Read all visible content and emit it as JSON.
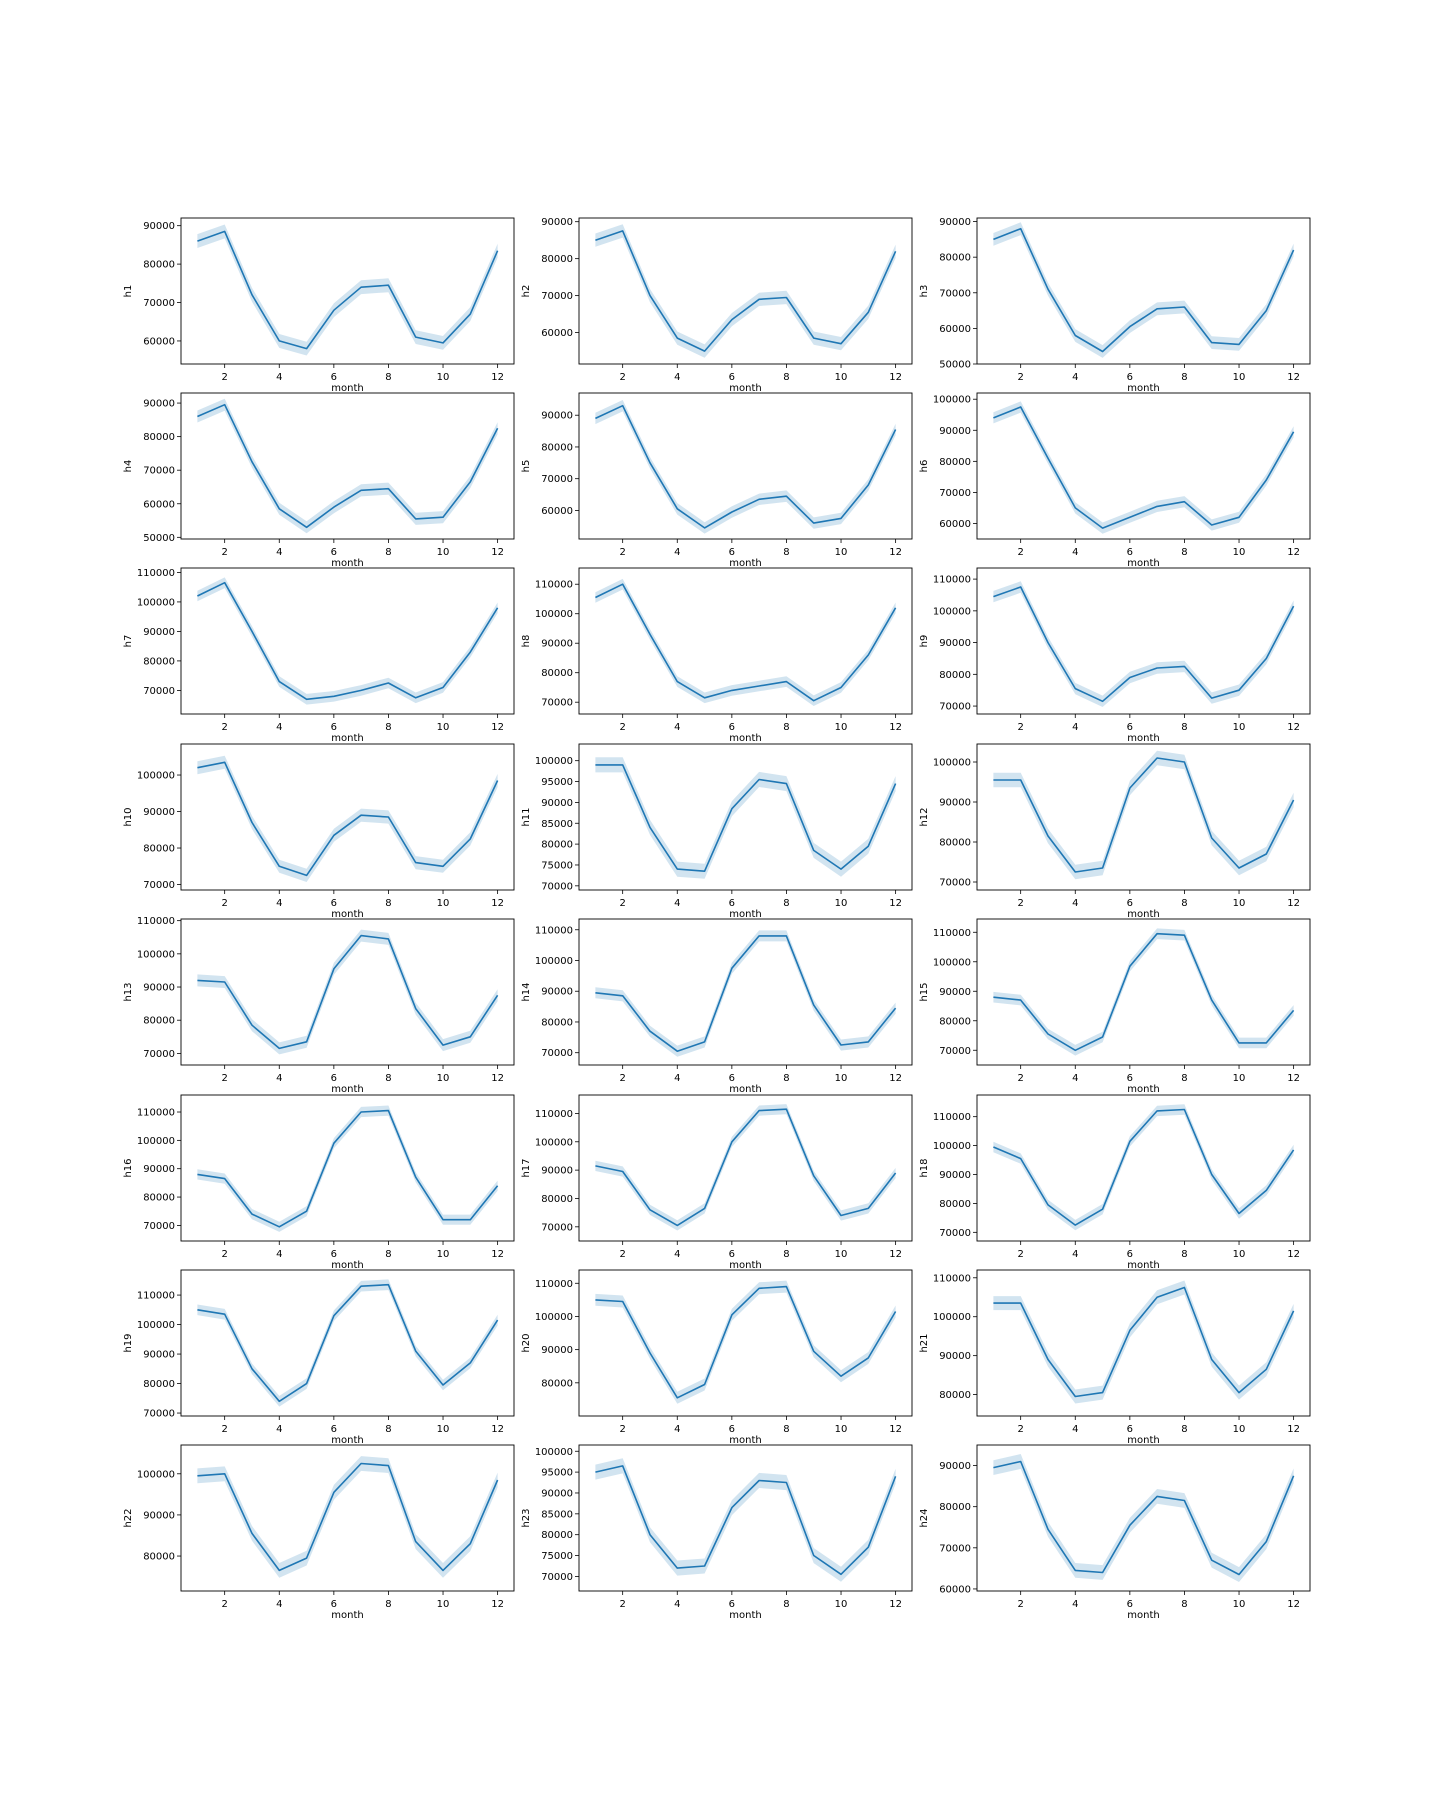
{
  "figure": {
    "colors": {
      "line": "#1f77b4",
      "band": "#1f77b4",
      "axis": "#000000"
    }
  },
  "chart_data": [
    {
      "type": "line",
      "ylabel": "h1",
      "xlabel": "month",
      "xlim": [
        0.4,
        12.6
      ],
      "ylim": [
        54000,
        92000
      ],
      "xticks": [
        2,
        4,
        6,
        8,
        10,
        12
      ],
      "yticks": [
        60000,
        70000,
        80000,
        90000
      ],
      "x": [
        1,
        2,
        3,
        4,
        5,
        6,
        7,
        8,
        9,
        10,
        11,
        12
      ],
      "values": [
        86000,
        88500,
        72000,
        60000,
        58000,
        68000,
        74000,
        74500,
        61000,
        59500,
        67000,
        83500
      ],
      "ci_half": 1800,
      "grid": false
    },
    {
      "type": "line",
      "ylabel": "h2",
      "xlabel": "month",
      "xlim": [
        0.4,
        12.6
      ],
      "ylim": [
        51500,
        91000
      ],
      "xticks": [
        2,
        4,
        6,
        8,
        10,
        12
      ],
      "yticks": [
        60000,
        70000,
        80000,
        90000
      ],
      "x": [
        1,
        2,
        3,
        4,
        5,
        6,
        7,
        8,
        9,
        10,
        11,
        12
      ],
      "values": [
        85000,
        87500,
        70000,
        58500,
        55000,
        63500,
        69000,
        69500,
        58500,
        57000,
        65500,
        82000
      ],
      "ci_half": 1800,
      "grid": false
    },
    {
      "type": "line",
      "ylabel": "h3",
      "xlabel": "month",
      "xlim": [
        0.4,
        12.6
      ],
      "ylim": [
        50000,
        91000
      ],
      "xticks": [
        2,
        4,
        6,
        8,
        10,
        12
      ],
      "yticks": [
        50000,
        60000,
        70000,
        80000,
        90000
      ],
      "x": [
        1,
        2,
        3,
        4,
        5,
        6,
        7,
        8,
        9,
        10,
        11,
        12
      ],
      "values": [
        85000,
        88000,
        71000,
        58000,
        53500,
        60500,
        65500,
        66000,
        56000,
        55500,
        65000,
        82000
      ],
      "ci_half": 1800,
      "grid": false
    },
    {
      "type": "line",
      "ylabel": "h4",
      "xlabel": "month",
      "xlim": [
        0.4,
        12.6
      ],
      "ylim": [
        49500,
        93000
      ],
      "xticks": [
        2,
        4,
        6,
        8,
        10,
        12
      ],
      "yticks": [
        50000,
        60000,
        70000,
        80000,
        90000
      ],
      "x": [
        1,
        2,
        3,
        4,
        5,
        6,
        7,
        8,
        9,
        10,
        11,
        12
      ],
      "values": [
        86000,
        89500,
        72500,
        58500,
        53000,
        59000,
        64000,
        64500,
        55500,
        56000,
        66500,
        82500
      ],
      "ci_half": 1800,
      "grid": false
    },
    {
      "type": "line",
      "ylabel": "h5",
      "xlabel": "month",
      "xlim": [
        0.4,
        12.6
      ],
      "ylim": [
        51000,
        97000
      ],
      "xticks": [
        2,
        4,
        6,
        8,
        10,
        12
      ],
      "yticks": [
        60000,
        70000,
        80000,
        90000
      ],
      "x": [
        1,
        2,
        3,
        4,
        5,
        6,
        7,
        8,
        9,
        10,
        11,
        12
      ],
      "values": [
        89000,
        93000,
        75000,
        60500,
        54500,
        59500,
        63500,
        64500,
        56000,
        57500,
        68000,
        85500
      ],
      "ci_half": 1800,
      "grid": false
    },
    {
      "type": "line",
      "ylabel": "h6",
      "xlabel": "month",
      "xlim": [
        0.4,
        12.6
      ],
      "ylim": [
        55000,
        102000
      ],
      "xticks": [
        2,
        4,
        6,
        8,
        10,
        12
      ],
      "yticks": [
        60000,
        70000,
        80000,
        90000,
        100000
      ],
      "x": [
        1,
        2,
        3,
        4,
        5,
        6,
        7,
        8,
        9,
        10,
        11,
        12
      ],
      "values": [
        94000,
        97500,
        81000,
        65000,
        58500,
        62000,
        65500,
        67000,
        59500,
        62000,
        74000,
        89500
      ],
      "ci_half": 1800,
      "grid": false
    },
    {
      "type": "line",
      "ylabel": "h7",
      "xlabel": "month",
      "xlim": [
        0.4,
        12.6
      ],
      "ylim": [
        62000,
        111500
      ],
      "xticks": [
        2,
        4,
        6,
        8,
        10,
        12
      ],
      "yticks": [
        70000,
        80000,
        90000,
        100000,
        110000
      ],
      "x": [
        1,
        2,
        3,
        4,
        5,
        6,
        7,
        8,
        9,
        10,
        11,
        12
      ],
      "values": [
        102000,
        106500,
        90000,
        73000,
        67000,
        68000,
        70000,
        72500,
        67500,
        71000,
        83000,
        98000
      ],
      "ci_half": 1800,
      "grid": false
    },
    {
      "type": "line",
      "ylabel": "h8",
      "xlabel": "month",
      "xlim": [
        0.4,
        12.6
      ],
      "ylim": [
        66000,
        115500
      ],
      "xticks": [
        2,
        4,
        6,
        8,
        10,
        12
      ],
      "yticks": [
        70000,
        80000,
        90000,
        100000,
        110000
      ],
      "x": [
        1,
        2,
        3,
        4,
        5,
        6,
        7,
        8,
        9,
        10,
        11,
        12
      ],
      "values": [
        105500,
        110000,
        93000,
        77000,
        71500,
        74000,
        75500,
        77000,
        70500,
        75000,
        86000,
        102000
      ],
      "ci_half": 1800,
      "grid": false
    },
    {
      "type": "line",
      "ylabel": "h9",
      "xlabel": "month",
      "xlim": [
        0.4,
        12.6
      ],
      "ylim": [
        67500,
        113500
      ],
      "xticks": [
        2,
        4,
        6,
        8,
        10,
        12
      ],
      "yticks": [
        70000,
        80000,
        90000,
        100000,
        110000
      ],
      "x": [
        1,
        2,
        3,
        4,
        5,
        6,
        7,
        8,
        9,
        10,
        11,
        12
      ],
      "values": [
        104500,
        107500,
        90000,
        75500,
        71500,
        79000,
        82000,
        82500,
        72500,
        75000,
        85000,
        101500
      ],
      "ci_half": 1800,
      "grid": false
    },
    {
      "type": "line",
      "ylabel": "h10",
      "xlabel": "month",
      "xlim": [
        0.4,
        12.6
      ],
      "ylim": [
        68500,
        108500
      ],
      "xticks": [
        2,
        4,
        6,
        8,
        10,
        12
      ],
      "yticks": [
        70000,
        80000,
        90000,
        100000
      ],
      "x": [
        1,
        2,
        3,
        4,
        5,
        6,
        7,
        8,
        9,
        10,
        11,
        12
      ],
      "values": [
        102000,
        103500,
        87000,
        75000,
        72500,
        83500,
        89000,
        88500,
        76000,
        75000,
        82500,
        98500
      ],
      "ci_half": 1800,
      "grid": false
    },
    {
      "type": "line",
      "ylabel": "h11",
      "xlabel": "month",
      "xlim": [
        0.4,
        12.6
      ],
      "ylim": [
        69000,
        104000
      ],
      "xticks": [
        2,
        4,
        6,
        8,
        10,
        12
      ],
      "yticks": [
        70000,
        75000,
        80000,
        85000,
        90000,
        95000,
        100000
      ],
      "x": [
        1,
        2,
        3,
        4,
        5,
        6,
        7,
        8,
        9,
        10,
        11,
        12
      ],
      "values": [
        99000,
        99000,
        84000,
        74000,
        73500,
        88500,
        95500,
        94500,
        78500,
        74000,
        79500,
        94500
      ],
      "ci_half": 1800,
      "grid": false
    },
    {
      "type": "line",
      "ylabel": "h12",
      "xlabel": "month",
      "xlim": [
        0.4,
        12.6
      ],
      "ylim": [
        68000,
        104500
      ],
      "xticks": [
        2,
        4,
        6,
        8,
        10,
        12
      ],
      "yticks": [
        70000,
        80000,
        90000,
        100000
      ],
      "x": [
        1,
        2,
        3,
        4,
        5,
        6,
        7,
        8,
        9,
        10,
        11,
        12
      ],
      "values": [
        95500,
        95500,
        81500,
        72500,
        73500,
        93500,
        101000,
        100000,
        81000,
        73500,
        77000,
        90500
      ],
      "ci_half": 1800,
      "grid": false
    },
    {
      "type": "line",
      "ylabel": "h13",
      "xlabel": "month",
      "xlim": [
        0.4,
        12.6
      ],
      "ylim": [
        66500,
        110500
      ],
      "xticks": [
        2,
        4,
        6,
        8,
        10,
        12
      ],
      "yticks": [
        70000,
        80000,
        90000,
        100000,
        110000
      ],
      "x": [
        1,
        2,
        3,
        4,
        5,
        6,
        7,
        8,
        9,
        10,
        11,
        12
      ],
      "values": [
        92000,
        91500,
        78500,
        71500,
        73500,
        95500,
        105500,
        104500,
        83500,
        72500,
        75000,
        87500
      ],
      "ci_half": 1800,
      "grid": false
    },
    {
      "type": "line",
      "ylabel": "h14",
      "xlabel": "month",
      "xlim": [
        0.4,
        12.6
      ],
      "ylim": [
        66000,
        113500
      ],
      "xticks": [
        2,
        4,
        6,
        8,
        10,
        12
      ],
      "yticks": [
        70000,
        80000,
        90000,
        100000,
        110000
      ],
      "x": [
        1,
        2,
        3,
        4,
        5,
        6,
        7,
        8,
        9,
        10,
        11,
        12
      ],
      "values": [
        89500,
        88500,
        77000,
        70500,
        73500,
        97500,
        108000,
        108000,
        85500,
        72500,
        73500,
        84500
      ],
      "ci_half": 1800,
      "grid": false
    },
    {
      "type": "line",
      "ylabel": "h15",
      "xlabel": "month",
      "xlim": [
        0.4,
        12.6
      ],
      "ylim": [
        65000,
        114500
      ],
      "xticks": [
        2,
        4,
        6,
        8,
        10,
        12
      ],
      "yticks": [
        70000,
        80000,
        90000,
        100000,
        110000
      ],
      "x": [
        1,
        2,
        3,
        4,
        5,
        6,
        7,
        8,
        9,
        10,
        11,
        12
      ],
      "values": [
        88000,
        87000,
        75500,
        70000,
        74500,
        98500,
        109500,
        109000,
        87000,
        72500,
        72500,
        83500
      ],
      "ci_half": 1800,
      "grid": false
    },
    {
      "type": "line",
      "ylabel": "h16",
      "xlabel": "month",
      "xlim": [
        0.4,
        12.6
      ],
      "ylim": [
        64500,
        116000
      ],
      "xticks": [
        2,
        4,
        6,
        8,
        10,
        12
      ],
      "yticks": [
        70000,
        80000,
        90000,
        100000,
        110000
      ],
      "x": [
        1,
        2,
        3,
        4,
        5,
        6,
        7,
        8,
        9,
        10,
        11,
        12
      ],
      "values": [
        88000,
        86500,
        74000,
        69500,
        75000,
        99000,
        110000,
        110500,
        87000,
        72000,
        72000,
        84000
      ],
      "ci_half": 1800,
      "grid": false
    },
    {
      "type": "line",
      "ylabel": "h17",
      "xlabel": "month",
      "xlim": [
        0.4,
        12.6
      ],
      "ylim": [
        65000,
        116500
      ],
      "xticks": [
        2,
        4,
        6,
        8,
        10,
        12
      ],
      "yticks": [
        70000,
        80000,
        90000,
        100000,
        110000
      ],
      "x": [
        1,
        2,
        3,
        4,
        5,
        6,
        7,
        8,
        9,
        10,
        11,
        12
      ],
      "values": [
        91500,
        89500,
        76000,
        70500,
        76500,
        100000,
        111000,
        111500,
        88000,
        74000,
        76500,
        89000
      ],
      "ci_half": 1800,
      "grid": false
    },
    {
      "type": "line",
      "ylabel": "h18",
      "xlabel": "month",
      "xlim": [
        0.4,
        12.6
      ],
      "ylim": [
        67000,
        117500
      ],
      "xticks": [
        2,
        4,
        6,
        8,
        10,
        12
      ],
      "yticks": [
        70000,
        80000,
        90000,
        100000,
        110000
      ],
      "x": [
        1,
        2,
        3,
        4,
        5,
        6,
        7,
        8,
        9,
        10,
        11,
        12
      ],
      "values": [
        99500,
        95500,
        79500,
        72500,
        78000,
        101500,
        112000,
        112500,
        90000,
        76500,
        84500,
        98500
      ],
      "ci_half": 1800,
      "grid": false
    },
    {
      "type": "line",
      "ylabel": "h19",
      "xlabel": "month",
      "xlim": [
        0.4,
        12.6
      ],
      "ylim": [
        69000,
        118500
      ],
      "xticks": [
        2,
        4,
        6,
        8,
        10,
        12
      ],
      "yticks": [
        70000,
        80000,
        90000,
        100000,
        110000
      ],
      "x": [
        1,
        2,
        3,
        4,
        5,
        6,
        7,
        8,
        9,
        10,
        11,
        12
      ],
      "values": [
        105000,
        103500,
        85000,
        74000,
        80000,
        103000,
        113000,
        113500,
        91000,
        79500,
        87000,
        101500
      ],
      "ci_half": 1800,
      "grid": false
    },
    {
      "type": "line",
      "ylabel": "h20",
      "xlabel": "month",
      "xlim": [
        0.4,
        12.6
      ],
      "ylim": [
        70000,
        114000
      ],
      "xticks": [
        2,
        4,
        6,
        8,
        10,
        12
      ],
      "yticks": [
        80000,
        90000,
        100000,
        110000
      ],
      "x": [
        1,
        2,
        3,
        4,
        5,
        6,
        7,
        8,
        9,
        10,
        11,
        12
      ],
      "values": [
        105000,
        104500,
        89000,
        75500,
        79500,
        100500,
        108500,
        109000,
        89500,
        82000,
        87500,
        101500
      ],
      "ci_half": 1800,
      "grid": false
    },
    {
      "type": "line",
      "ylabel": "h21",
      "xlabel": "month",
      "xlim": [
        0.4,
        12.6
      ],
      "ylim": [
        74500,
        112000
      ],
      "xticks": [
        2,
        4,
        6,
        8,
        10,
        12
      ],
      "yticks": [
        80000,
        90000,
        100000,
        110000
      ],
      "x": [
        1,
        2,
        3,
        4,
        5,
        6,
        7,
        8,
        9,
        10,
        11,
        12
      ],
      "values": [
        103500,
        103500,
        89000,
        79500,
        80500,
        96500,
        105000,
        107500,
        89000,
        80500,
        86500,
        101500
      ],
      "ci_half": 1800,
      "grid": false
    },
    {
      "type": "line",
      "ylabel": "h22",
      "xlabel": "month",
      "xlim": [
        0.4,
        12.6
      ],
      "ylim": [
        71500,
        107000
      ],
      "xticks": [
        2,
        4,
        6,
        8,
        10,
        12
      ],
      "yticks": [
        80000,
        90000,
        100000
      ],
      "x": [
        1,
        2,
        3,
        4,
        5,
        6,
        7,
        8,
        9,
        10,
        11,
        12
      ],
      "values": [
        99500,
        100000,
        85500,
        76500,
        79500,
        95500,
        102500,
        102000,
        83500,
        76500,
        83000,
        98500
      ],
      "ci_half": 1800,
      "grid": false
    },
    {
      "type": "line",
      "ylabel": "h23",
      "xlabel": "month",
      "xlim": [
        0.4,
        12.6
      ],
      "ylim": [
        66500,
        101500
      ],
      "xticks": [
        2,
        4,
        6,
        8,
        10,
        12
      ],
      "yticks": [
        70000,
        75000,
        80000,
        85000,
        90000,
        95000,
        100000
      ],
      "x": [
        1,
        2,
        3,
        4,
        5,
        6,
        7,
        8,
        9,
        10,
        11,
        12
      ],
      "values": [
        95000,
        96500,
        80000,
        72000,
        72500,
        86500,
        93000,
        92500,
        75000,
        70500,
        77000,
        94000
      ],
      "ci_half": 1800,
      "grid": false
    },
    {
      "type": "line",
      "ylabel": "h24",
      "xlabel": "month",
      "xlim": [
        0.4,
        12.6
      ],
      "ylim": [
        59500,
        95000
      ],
      "xticks": [
        2,
        4,
        6,
        8,
        10,
        12
      ],
      "yticks": [
        60000,
        70000,
        80000,
        90000
      ],
      "x": [
        1,
        2,
        3,
        4,
        5,
        6,
        7,
        8,
        9,
        10,
        11,
        12
      ],
      "values": [
        89500,
        91000,
        74500,
        64500,
        64000,
        75500,
        82500,
        81500,
        67000,
        63500,
        71500,
        87500
      ],
      "ci_half": 1800,
      "grid": false
    }
  ]
}
